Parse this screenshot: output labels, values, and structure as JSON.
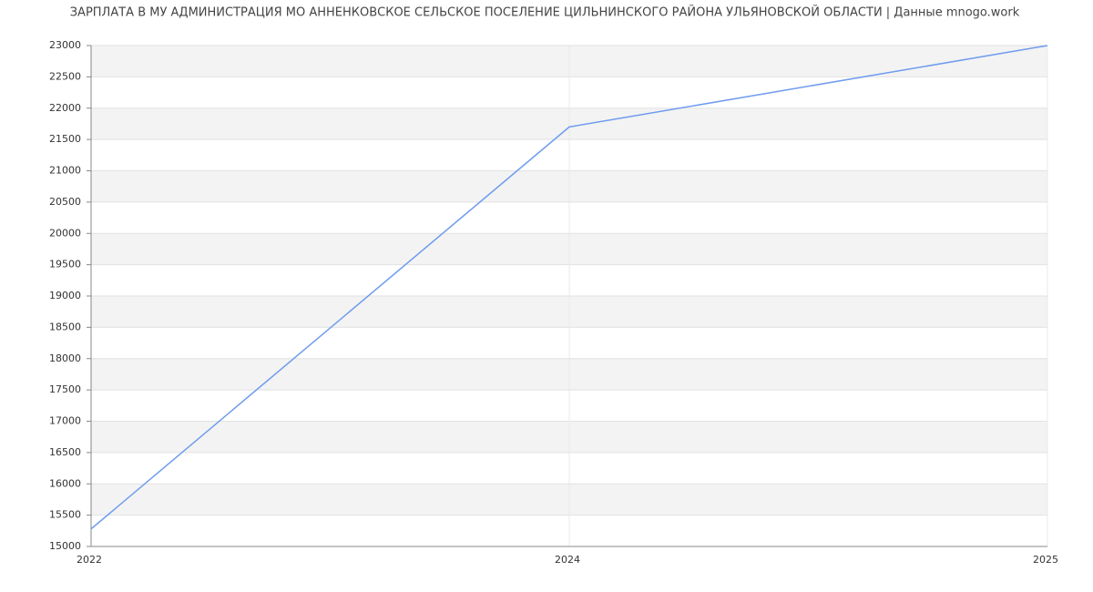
{
  "chart_data": {
    "type": "line",
    "title": "ЗАРПЛАТА В МУ АДМИНИСТРАЦИЯ МО АННЕНКОВСКОЕ СЕЛЬСКОЕ ПОСЕЛЕНИЕ ЦИЛЬНИНСКОГО РАЙОНА УЛЬЯНОВСКОЙ ОБЛАСТИ | Данные mnogo.work",
    "categories": [
      "2022",
      "2024",
      "2025"
    ],
    "series": [
      {
        "name": "Зарплата",
        "color": "#6f9cee",
        "values": [
          15280,
          21700,
          23000
        ]
      }
    ],
    "ylim": [
      15000,
      23000
    ],
    "yticks": [
      15000,
      15500,
      16000,
      16500,
      17000,
      17500,
      18000,
      18500,
      19000,
      19500,
      20000,
      20500,
      21000,
      21500,
      22000,
      22500,
      23000
    ],
    "grid": true
  }
}
